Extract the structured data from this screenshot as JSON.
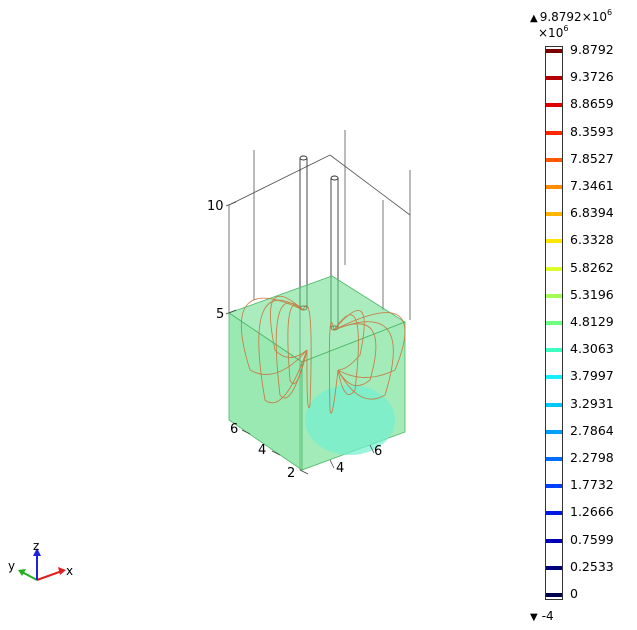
{
  "plot": {
    "axis_ticks": {
      "z_10": "10",
      "z_5": "5",
      "y_6": "6",
      "y_4": "4",
      "y_2": "2",
      "x_4": "4",
      "x_6": "6"
    },
    "colors": {
      "domain_fill": "#66dd88",
      "domain_stroke": "#4fb86a",
      "streamline": "#c87038",
      "hotspot": "#70f0d0"
    }
  },
  "colorbar": {
    "max_value": "9.8792×10",
    "max_exp": "6",
    "multiplier": "×10",
    "multiplier_exp": "6",
    "min_value": "-4",
    "max_triangle": "▲",
    "min_triangle": "▼",
    "ticks": [
      {
        "label": "9.8792",
        "color": "#7a0000"
      },
      {
        "label": "9.3726",
        "color": "#b40000"
      },
      {
        "label": "8.8659",
        "color": "#e00000"
      },
      {
        "label": "8.3593",
        "color": "#ff2800"
      },
      {
        "label": "7.8527",
        "color": "#ff5a00"
      },
      {
        "label": "7.3461",
        "color": "#ff8c00"
      },
      {
        "label": "6.8394",
        "color": "#ffb400"
      },
      {
        "label": "6.3328",
        "color": "#ffe600"
      },
      {
        "label": "5.8262",
        "color": "#dcff28"
      },
      {
        "label": "5.3196",
        "color": "#a0ff50"
      },
      {
        "label": "4.8129",
        "color": "#6cff80"
      },
      {
        "label": "4.3063",
        "color": "#3cffc0"
      },
      {
        "label": "3.7997",
        "color": "#14f0ff"
      },
      {
        "label": "3.2931",
        "color": "#00c8ff"
      },
      {
        "label": "2.7864",
        "color": "#009cff"
      },
      {
        "label": "2.2798",
        "color": "#006eff"
      },
      {
        "label": "1.7732",
        "color": "#0040ff"
      },
      {
        "label": "1.2666",
        "color": "#0018e6"
      },
      {
        "label": "0.7599",
        "color": "#0000b4"
      },
      {
        "label": "0.2533",
        "color": "#00007a"
      },
      {
        "label": "0",
        "color": "#000050"
      }
    ]
  },
  "triad": {
    "x_label": "x",
    "y_label": "y",
    "z_label": "z",
    "x_color": "#e02020",
    "y_color": "#20b020",
    "z_color": "#2020e0"
  }
}
